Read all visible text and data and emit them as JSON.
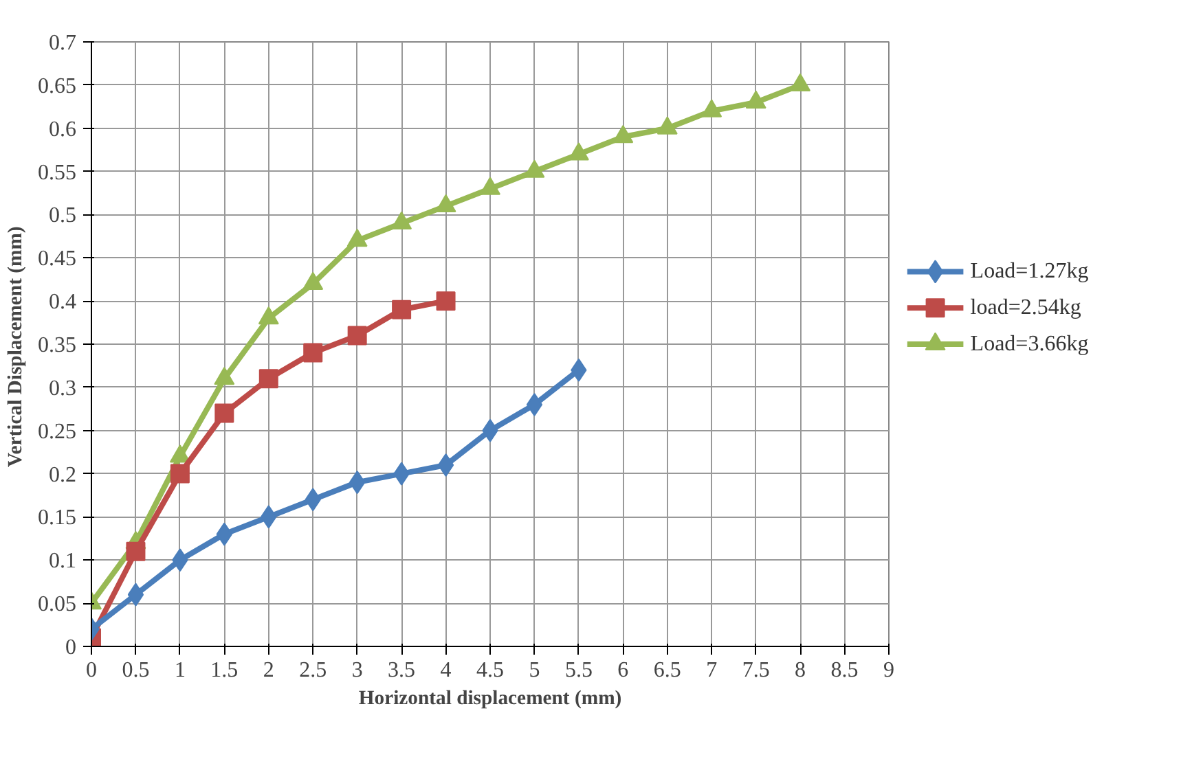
{
  "chart_data": {
    "type": "line",
    "xlabel": "Horizontal displacement (mm)",
    "ylabel": "Vertical Displacement  (mm)",
    "xlim": [
      0,
      9
    ],
    "xticks": [
      0,
      0.5,
      1,
      1.5,
      2,
      2.5,
      3,
      3.5,
      4,
      4.5,
      5,
      5.5,
      6,
      6.5,
      7,
      7.5,
      8,
      8.5,
      9
    ],
    "ylim": [
      0,
      0.7
    ],
    "yticks": [
      0,
      0.05,
      0.1,
      0.15,
      0.2,
      0.25,
      0.3,
      0.35,
      0.4,
      0.45,
      0.5,
      0.55,
      0.6,
      0.65,
      0.7
    ],
    "grid": true,
    "legend": "right",
    "line_style": "solid",
    "series": [
      {
        "name": "Load=1.27kg",
        "color": "#4a7ebb",
        "marker": "diamond",
        "x": [
          0,
          0.5,
          1,
          1.5,
          2,
          2.5,
          3,
          3.5,
          4,
          4.5,
          5,
          5.5
        ],
        "values": [
          0.02,
          0.06,
          0.1,
          0.13,
          0.15,
          0.17,
          0.19,
          0.2,
          0.21,
          0.25,
          0.28,
          0.32
        ]
      },
      {
        "name": "load=2.54kg",
        "color": "#be4b48",
        "marker": "square",
        "x": [
          0,
          0.5,
          1,
          1.5,
          2,
          2.5,
          3,
          3.5,
          4
        ],
        "values": [
          0.01,
          0.11,
          0.2,
          0.27,
          0.31,
          0.34,
          0.36,
          0.39,
          0.4
        ]
      },
      {
        "name": "Load=3.66kg",
        "color": "#98b954",
        "marker": "triangle",
        "x": [
          0,
          0.5,
          1,
          1.5,
          2,
          2.5,
          3,
          3.5,
          4,
          4.5,
          5,
          5.5,
          6,
          6.5,
          7,
          7.5,
          8
        ],
        "values": [
          0.05,
          0.12,
          0.22,
          0.31,
          0.38,
          0.42,
          0.47,
          0.49,
          0.51,
          0.53,
          0.55,
          0.57,
          0.59,
          0.6,
          0.62,
          0.63,
          0.65
        ]
      }
    ]
  }
}
